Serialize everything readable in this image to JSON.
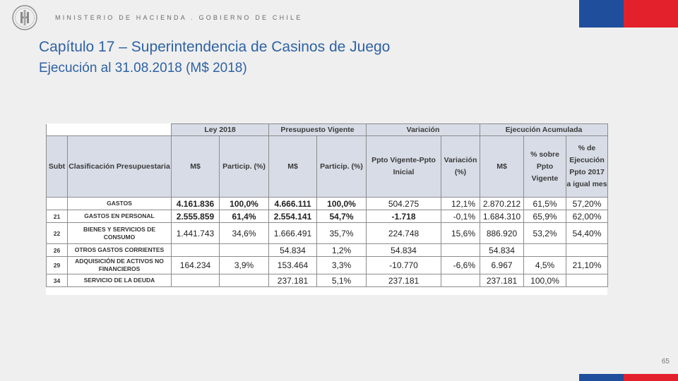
{
  "header": {
    "ministry": "MINISTERIO DE HACIENDA . GOBIERNO DE CHILE",
    "logo_icon": "coat-of-arms-icon",
    "flag_colors": {
      "blue": "#1f4e9c",
      "red": "#e3212d"
    }
  },
  "title": "Capítulo 17 – Superintendencia de Casinos de Juego",
  "subtitle": "Ejecución al 31.08.2018 (M$ 2018)",
  "table": {
    "group_headers": {
      "ley": "Ley 2018",
      "presupuesto": "Presupuesto Vigente",
      "variacion": "Variación",
      "ejecucion": "Ejecución Acumulada"
    },
    "columns": {
      "subt": "Subt",
      "clasificacion": "Clasificación Presupuestaria",
      "ley_ms": "M$",
      "ley_particip": "Particip. (%)",
      "pv_ms": "M$",
      "pv_particip": "Particip. (%)",
      "var_ppto": "Ppto Vigente-Ppto Inicial",
      "var_pct": "Variación (%)",
      "ej_ms": "M$",
      "ej_sobre": "% sobre Ppto Vigente",
      "ej_pct2017": "% de Ejecución Ppto 2017 a igual mes"
    },
    "rows": [
      {
        "subt": "",
        "name": "GASTOS",
        "ley_ms": "4.161.836",
        "ley_p": "100,0%",
        "pv_ms": "4.666.111",
        "pv_p": "100,0%",
        "var": "504.275",
        "var_p": "12,1%",
        "ej_ms": "2.870.212",
        "ej_p": "61,5%",
        "ej_2017": "57,20%"
      },
      {
        "subt": "21",
        "name": "GASTOS EN PERSONAL",
        "ley_ms": "2.555.859",
        "ley_p": "61,4%",
        "pv_ms": "2.554.141",
        "pv_p": "54,7%",
        "var": "-1.718",
        "var_p": "-0,1%",
        "ej_ms": "1.684.310",
        "ej_p": "65,9%",
        "ej_2017": "62,00%"
      },
      {
        "subt": "22",
        "name": "BIENES Y SERVICIOS DE CONSUMO",
        "ley_ms": "1.441.743",
        "ley_p": "34,6%",
        "pv_ms": "1.666.491",
        "pv_p": "35,7%",
        "var": "224.748",
        "var_p": "15,6%",
        "ej_ms": "886.920",
        "ej_p": "53,2%",
        "ej_2017": "54,40%"
      },
      {
        "subt": "26",
        "name": "OTROS GASTOS CORRIENTES",
        "ley_ms": "",
        "ley_p": "",
        "pv_ms": "54.834",
        "pv_p": "1,2%",
        "var": "54.834",
        "var_p": "",
        "ej_ms": "54.834",
        "ej_p": "",
        "ej_2017": ""
      },
      {
        "subt": "29",
        "name": "ADQUISICIÓN DE ACTIVOS NO FINANCIEROS",
        "ley_ms": "164.234",
        "ley_p": "3,9%",
        "pv_ms": "153.464",
        "pv_p": "3,3%",
        "var": "-10.770",
        "var_p": "-6,6%",
        "ej_ms": "6.967",
        "ej_p": "4,5%",
        "ej_2017": "21,10%"
      },
      {
        "subt": "34",
        "name": "SERVICIO DE LA DEUDA",
        "ley_ms": "",
        "ley_p": "",
        "pv_ms": "237.181",
        "pv_p": "5,1%",
        "var": "237.181",
        "var_p": "",
        "ej_ms": "237.181",
        "ej_p": "100,0%",
        "ej_2017": ""
      }
    ]
  },
  "page_number": "65"
}
